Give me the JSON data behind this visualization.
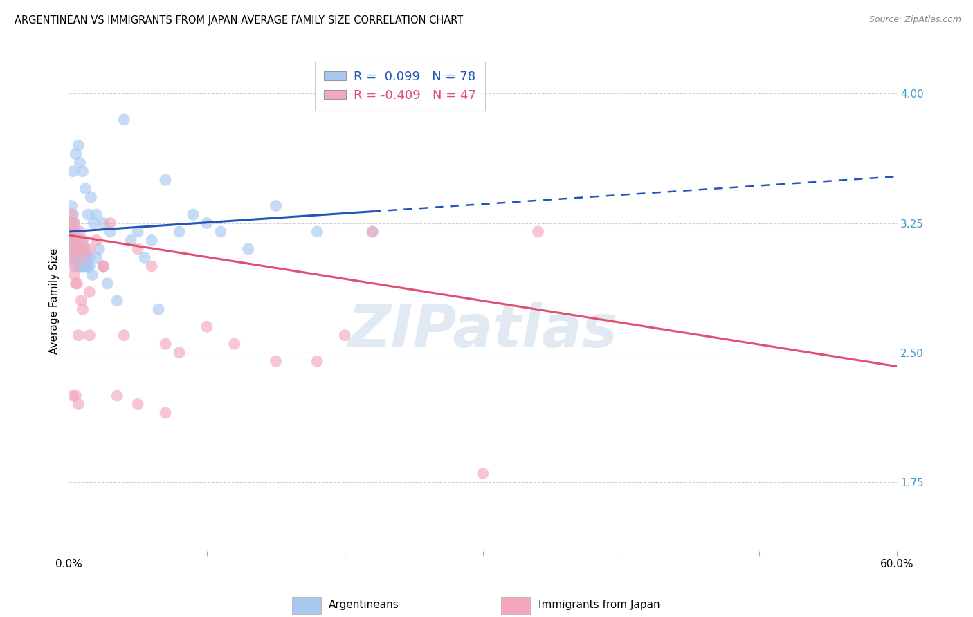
{
  "title": "ARGENTINEAN VS IMMIGRANTS FROM JAPAN AVERAGE FAMILY SIZE CORRELATION CHART",
  "source": "Source: ZipAtlas.com",
  "ylabel": "Average Family Size",
  "right_yticks": [
    1.75,
    2.5,
    3.25,
    4.0
  ],
  "blue_R": "0.099",
  "blue_N": "78",
  "pink_R": "-0.409",
  "pink_N": "47",
  "blue_color": "#A8C8F0",
  "pink_color": "#F4A8BC",
  "blue_line_color": "#2255BB",
  "pink_line_color": "#E05070",
  "legend_label_blue": "Argentineans",
  "legend_label_pink": "Immigrants from Japan",
  "watermark": "ZIPatlas",
  "background_color": "#FFFFFF",
  "grid_color": "#CCCCCC",
  "xlim": [
    0,
    60
  ],
  "ylim": [
    1.35,
    4.25
  ],
  "blue_line_x0": 0,
  "blue_line_x1": 60,
  "blue_line_y0": 3.2,
  "blue_line_y1": 3.52,
  "blue_solid_end": 22,
  "pink_line_x0": 0,
  "pink_line_x1": 60,
  "pink_line_y0": 3.18,
  "pink_line_y1": 2.42,
  "blue_scatter_x": [
    0.3,
    0.5,
    0.7,
    0.8,
    1.0,
    1.2,
    1.4,
    1.6,
    1.8,
    2.0,
    2.5,
    3.0,
    4.0,
    5.0,
    6.0,
    7.0,
    8.0,
    9.0,
    10.0,
    11.0,
    13.0,
    15.0,
    18.0,
    0.2,
    0.2,
    0.3,
    0.3,
    0.4,
    0.4,
    0.5,
    0.5,
    0.6,
    0.6,
    0.7,
    0.8,
    0.9,
    1.0,
    1.1,
    1.2,
    1.3,
    1.5,
    1.7,
    2.0,
    2.2,
    2.5,
    2.8,
    3.5,
    4.5,
    5.5,
    6.5,
    0.1,
    0.15,
    0.15,
    0.2,
    0.2,
    0.25,
    0.25,
    0.3,
    0.35,
    0.4,
    0.45,
    0.5,
    0.55,
    0.6,
    0.65,
    0.7,
    0.75,
    0.8,
    0.85,
    0.9,
    0.95,
    1.0,
    1.1,
    1.2,
    1.3,
    1.4,
    1.5,
    22.0
  ],
  "blue_scatter_y": [
    3.55,
    3.65,
    3.7,
    3.6,
    3.55,
    3.45,
    3.3,
    3.4,
    3.25,
    3.3,
    3.25,
    3.2,
    3.85,
    3.2,
    3.15,
    3.5,
    3.2,
    3.3,
    3.25,
    3.2,
    3.1,
    3.35,
    3.2,
    3.35,
    3.25,
    3.3,
    3.2,
    3.25,
    3.15,
    3.2,
    3.1,
    3.15,
    3.05,
    3.1,
    3.05,
    3.0,
    3.15,
    3.1,
    3.05,
    3.0,
    3.0,
    2.95,
    3.05,
    3.1,
    3.0,
    2.9,
    2.8,
    3.15,
    3.05,
    2.75,
    3.2,
    3.1,
    3.25,
    3.15,
    3.05,
    3.2,
    3.1,
    3.15,
    3.2,
    3.1,
    3.05,
    3.0,
    3.1,
    3.05,
    3.0,
    3.05,
    3.1,
    3.0,
    3.05,
    3.1,
    3.05,
    3.0,
    3.05,
    3.0,
    3.05,
    3.0,
    3.05,
    3.2
  ],
  "pink_scatter_x": [
    0.2,
    0.3,
    0.4,
    0.5,
    0.6,
    0.7,
    0.8,
    1.0,
    1.2,
    1.5,
    2.0,
    2.5,
    3.0,
    4.0,
    5.0,
    6.0,
    7.0,
    8.0,
    10.0,
    12.0,
    15.0,
    18.0,
    20.0,
    22.0,
    0.15,
    0.2,
    0.25,
    0.3,
    0.35,
    0.4,
    0.5,
    0.6,
    0.7,
    0.9,
    1.0,
    1.5,
    2.5,
    3.5,
    5.0,
    7.0,
    30.0,
    0.3,
    0.5,
    0.7,
    1.0,
    1.5,
    34.0
  ],
  "pink_scatter_y": [
    3.3,
    3.2,
    3.25,
    3.15,
    3.1,
    3.1,
    3.2,
    3.15,
    3.1,
    3.1,
    3.15,
    3.0,
    3.25,
    2.6,
    3.1,
    3.0,
    2.55,
    2.5,
    2.65,
    2.55,
    2.45,
    2.45,
    2.6,
    3.2,
    3.25,
    3.1,
    3.05,
    3.15,
    3.0,
    2.95,
    2.9,
    2.9,
    2.6,
    2.8,
    3.05,
    2.6,
    3.0,
    2.25,
    2.2,
    2.15,
    1.8,
    2.25,
    2.25,
    2.2,
    2.75,
    2.85,
    3.2
  ]
}
